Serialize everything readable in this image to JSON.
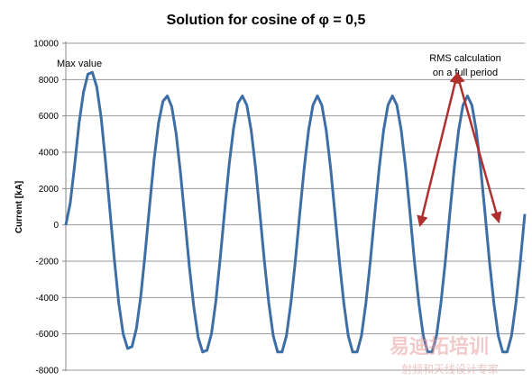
{
  "chart_data": {
    "type": "line",
    "title": "Solution for cosine of φ = 0,5",
    "xlabel": "",
    "ylabel": "Current [kA]",
    "ylim": [
      -8000,
      10000
    ],
    "yticks": [
      10000,
      8000,
      6000,
      4000,
      2000,
      0,
      -2000,
      -4000,
      -6000,
      -8000
    ],
    "grid": true,
    "legend": "none",
    "series": [
      {
        "color": "#3d6ea5",
        "x": [
          0,
          0.0625,
          0.125,
          0.1875,
          0.25,
          0.3125,
          0.375,
          0.4375,
          0.5,
          0.5625,
          0.625,
          0.6875,
          0.75,
          0.8125,
          0.875,
          0.9375,
          1.0,
          1.0625,
          1.125,
          1.1875,
          1.25,
          1.3125,
          1.375,
          1.4375,
          1.5,
          1.5625,
          1.625,
          1.6875,
          1.75,
          1.8125,
          1.875,
          1.9375,
          2.0,
          2.0625,
          2.125,
          2.1875,
          2.25,
          2.3125,
          2.375,
          2.4375,
          2.5,
          2.5625,
          2.625,
          2.6875,
          2.75,
          2.8125,
          2.875,
          2.9375,
          3.0,
          3.0625,
          3.125,
          3.1875,
          3.25,
          3.3125,
          3.375,
          3.4375,
          3.5,
          3.5625,
          3.625,
          3.6875,
          3.75,
          3.8125,
          3.875,
          3.9375,
          4.0,
          4.0625,
          4.125,
          4.1875,
          4.25,
          4.3125,
          4.375,
          4.4375,
          4.5,
          4.5625,
          4.625,
          4.6875,
          4.75,
          4.8125,
          4.875,
          4.9375,
          5.0,
          5.0625,
          5.125,
          5.1875,
          5.25,
          5.3125,
          5.375,
          5.4375,
          5.5,
          5.5625,
          5.625,
          5.6875,
          5.75,
          5.8125,
          5.875,
          5.9375,
          6.0,
          6.0625,
          6.125,
          6.1875,
          6.25,
          6.3125,
          6.375,
          6.4375,
          6.5
        ],
        "y": [
          0,
          1200,
          3300,
          5600,
          7300,
          8300,
          8400,
          7600,
          5900,
          3500,
          800,
          -1900,
          -4300,
          -6000,
          -6800,
          -6700,
          -5700,
          -3900,
          -1500,
          1100,
          3600,
          5600,
          6800,
          7100,
          6500,
          5000,
          2800,
          300,
          -2300,
          -4500,
          -6200,
          -7000,
          -6900,
          -6000,
          -4200,
          -1800,
          800,
          3300,
          5300,
          6700,
          7100,
          6600,
          5200,
          3100,
          600,
          -2000,
          -4300,
          -6100,
          -7000,
          -7000,
          -6100,
          -4300,
          -2000,
          600,
          3100,
          5200,
          6600,
          7100,
          6600,
          5200,
          3100,
          600,
          -2000,
          -4300,
          -6100,
          -7000,
          -7000,
          -6100,
          -4300,
          -2000,
          600,
          3100,
          5200,
          6600,
          7100,
          6600,
          5200,
          3100,
          600,
          -2000,
          -4300,
          -6100,
          -7000,
          -7000,
          -6100,
          -4300,
          -2000,
          600,
          3100,
          5200,
          6600,
          7100,
          6600,
          5200,
          3100,
          600,
          -2000,
          -4300,
          -6100,
          -7000,
          -7000,
          -6100,
          -4300,
          -2000,
          600
        ]
      }
    ],
    "annotations": [
      {
        "text": "Max value"
      },
      {
        "text_lines": [
          "RMS calculation",
          "on a full period"
        ],
        "arrow_color": "#b03030",
        "apex": 8000,
        "left_end": 0,
        "right_end": 0
      }
    ]
  },
  "watermark": {
    "line1": "易迪拓培训",
    "line2": "射频和天线设计专家"
  }
}
